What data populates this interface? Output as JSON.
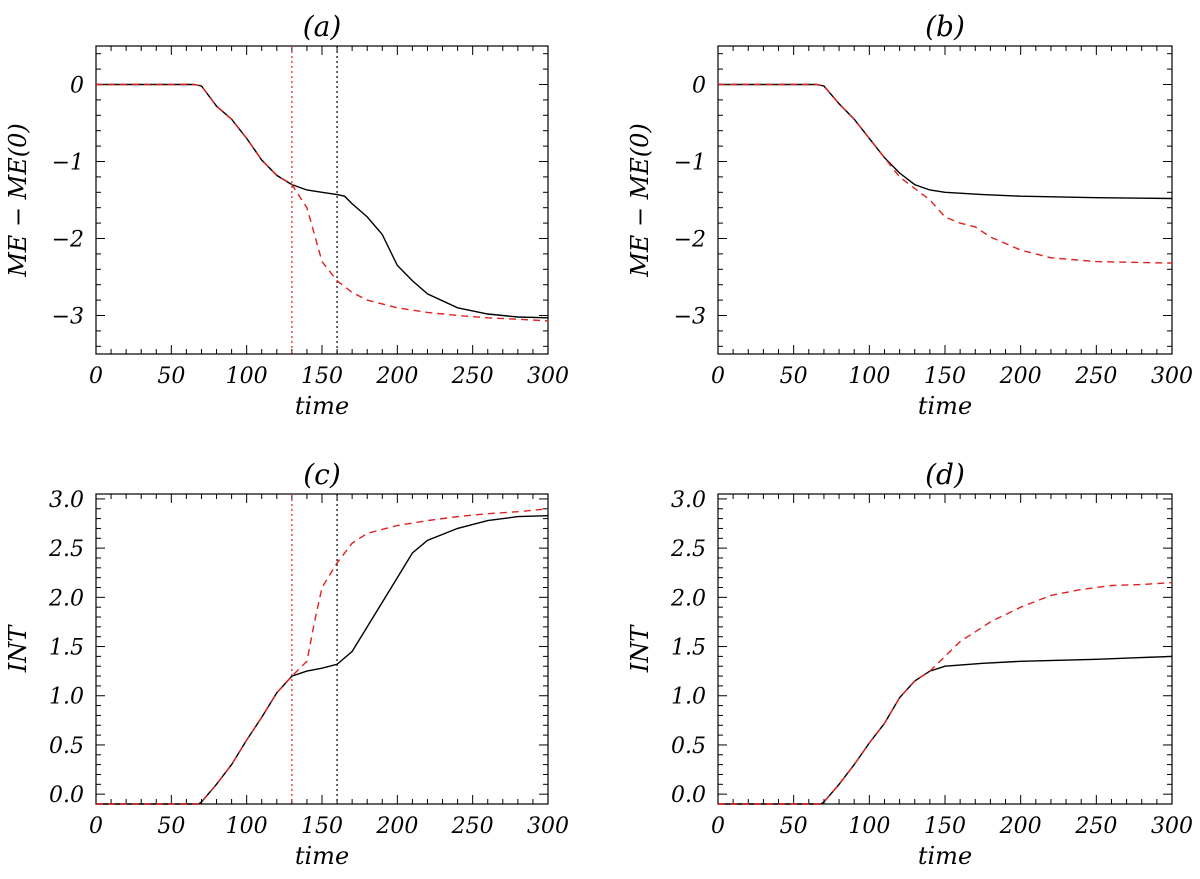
{
  "colors": {
    "solid": "#000000",
    "dashed": "#e02020",
    "vline_red": "#e02020",
    "vline_black": "#000000"
  },
  "chart_data": [
    {
      "type": "line",
      "title": "(a)",
      "xlabel": "time",
      "ylabel": "ME − ME(0)",
      "xlim": [
        0,
        300
      ],
      "ylim": [
        -3.5,
        0.5
      ],
      "xticks": [
        "0",
        "50",
        "100",
        "150",
        "200",
        "250",
        "300"
      ],
      "yticks": [
        "0",
        "−1",
        "−2",
        "−3"
      ],
      "ytick_values": [
        0,
        -1,
        -2,
        -3
      ],
      "vlines": [
        {
          "x": 130,
          "color": "#e02020"
        },
        {
          "x": 160,
          "color": "#000000"
        }
      ],
      "series": [
        {
          "style": "solid",
          "x": [
            0,
            65,
            70,
            80,
            90,
            100,
            110,
            120,
            130,
            140,
            150,
            160,
            165,
            170,
            180,
            190,
            200,
            210,
            220,
            240,
            260,
            280,
            300
          ],
          "y": [
            0,
            0,
            -0.02,
            -0.28,
            -0.45,
            -0.7,
            -0.98,
            -1.18,
            -1.3,
            -1.37,
            -1.4,
            -1.43,
            -1.45,
            -1.55,
            -1.72,
            -1.95,
            -2.35,
            -2.55,
            -2.72,
            -2.9,
            -2.98,
            -3.02,
            -3.03
          ]
        },
        {
          "style": "dashed",
          "x": [
            0,
            65,
            70,
            80,
            90,
            100,
            110,
            120,
            130,
            140,
            145,
            150,
            160,
            170,
            180,
            200,
            220,
            240,
            260,
            280,
            300
          ],
          "y": [
            0,
            0,
            -0.02,
            -0.28,
            -0.45,
            -0.7,
            -0.98,
            -1.18,
            -1.3,
            -1.6,
            -1.95,
            -2.3,
            -2.55,
            -2.7,
            -2.8,
            -2.9,
            -2.96,
            -3.0,
            -3.03,
            -3.05,
            -3.07
          ]
        }
      ]
    },
    {
      "type": "line",
      "title": "(b)",
      "xlabel": "time",
      "ylabel": "ME − ME(0)",
      "xlim": [
        0,
        300
      ],
      "ylim": [
        -3.5,
        0.5
      ],
      "xticks": [
        "0",
        "50",
        "100",
        "150",
        "200",
        "250",
        "300"
      ],
      "yticks": [
        "0",
        "−1",
        "−2",
        "−3"
      ],
      "ytick_values": [
        0,
        -1,
        -2,
        -3
      ],
      "vlines": [],
      "series": [
        {
          "style": "solid",
          "x": [
            0,
            65,
            70,
            80,
            90,
            100,
            110,
            120,
            130,
            140,
            150,
            175,
            200,
            250,
            300
          ],
          "y": [
            0,
            0,
            -0.02,
            -0.25,
            -0.45,
            -0.7,
            -0.95,
            -1.15,
            -1.3,
            -1.37,
            -1.4,
            -1.43,
            -1.45,
            -1.47,
            -1.48
          ]
        },
        {
          "style": "dashed",
          "x": [
            0,
            65,
            70,
            80,
            90,
            100,
            110,
            120,
            130,
            140,
            150,
            160,
            170,
            180,
            200,
            220,
            250,
            300
          ],
          "y": [
            0,
            0,
            -0.02,
            -0.25,
            -0.45,
            -0.7,
            -0.95,
            -1.2,
            -1.35,
            -1.5,
            -1.72,
            -1.8,
            -1.85,
            -1.98,
            -2.15,
            -2.25,
            -2.3,
            -2.32
          ]
        }
      ]
    },
    {
      "type": "line",
      "title": "(c)",
      "xlabel": "time",
      "ylabel": "INT",
      "xlim": [
        0,
        300
      ],
      "ylim": [
        -0.1,
        3.05
      ],
      "xticks": [
        "0",
        "50",
        "100",
        "150",
        "200",
        "250",
        "300"
      ],
      "yticks": [
        "0.0",
        "0.5",
        "1.0",
        "1.5",
        "2.0",
        "2.5",
        "3.0"
      ],
      "ytick_values": [
        0,
        0.5,
        1.0,
        1.5,
        2.0,
        2.5,
        3.0
      ],
      "vlines": [
        {
          "x": 130,
          "color": "#e02020"
        },
        {
          "x": 160,
          "color": "#000000"
        }
      ],
      "series": [
        {
          "style": "solid",
          "x": [
            0,
            68,
            70,
            80,
            90,
            100,
            110,
            120,
            130,
            140,
            150,
            160,
            170,
            180,
            190,
            200,
            210,
            220,
            240,
            260,
            280,
            300
          ],
          "y": [
            -0.1,
            -0.1,
            -0.08,
            0.1,
            0.3,
            0.55,
            0.78,
            1.03,
            1.2,
            1.25,
            1.28,
            1.32,
            1.45,
            1.7,
            1.95,
            2.2,
            2.45,
            2.58,
            2.7,
            2.78,
            2.82,
            2.83
          ]
        },
        {
          "style": "dashed",
          "x": [
            0,
            68,
            70,
            80,
            90,
            100,
            110,
            120,
            130,
            140,
            145,
            150,
            160,
            170,
            180,
            200,
            220,
            240,
            260,
            280,
            300
          ],
          "y": [
            -0.1,
            -0.1,
            -0.08,
            0.1,
            0.3,
            0.55,
            0.78,
            1.03,
            1.2,
            1.35,
            1.75,
            2.1,
            2.35,
            2.55,
            2.65,
            2.73,
            2.78,
            2.82,
            2.85,
            2.87,
            2.9
          ]
        }
      ]
    },
    {
      "type": "line",
      "title": "(d)",
      "xlabel": "time",
      "ylabel": "INT",
      "xlim": [
        0,
        300
      ],
      "ylim": [
        -0.1,
        3.05
      ],
      "xticks": [
        "0",
        "50",
        "100",
        "150",
        "200",
        "250",
        "300"
      ],
      "yticks": [
        "0.0",
        "0.5",
        "1.0",
        "1.5",
        "2.0",
        "2.5",
        "3.0"
      ],
      "ytick_values": [
        0,
        0.5,
        1.0,
        1.5,
        2.0,
        2.5,
        3.0
      ],
      "vlines": [],
      "series": [
        {
          "style": "solid",
          "x": [
            0,
            68,
            70,
            80,
            90,
            100,
            110,
            120,
            130,
            140,
            150,
            175,
            200,
            250,
            300
          ],
          "y": [
            -0.1,
            -0.1,
            -0.08,
            0.1,
            0.3,
            0.52,
            0.72,
            0.98,
            1.15,
            1.25,
            1.3,
            1.33,
            1.35,
            1.37,
            1.4
          ]
        },
        {
          "style": "dashed",
          "x": [
            0,
            68,
            70,
            80,
            90,
            100,
            110,
            120,
            130,
            140,
            150,
            160,
            170,
            180,
            200,
            220,
            240,
            260,
            280,
            300
          ],
          "y": [
            -0.1,
            -0.1,
            -0.08,
            0.1,
            0.3,
            0.52,
            0.72,
            0.98,
            1.15,
            1.25,
            1.4,
            1.55,
            1.65,
            1.75,
            1.9,
            2.02,
            2.08,
            2.12,
            2.13,
            2.15
          ]
        }
      ]
    }
  ]
}
